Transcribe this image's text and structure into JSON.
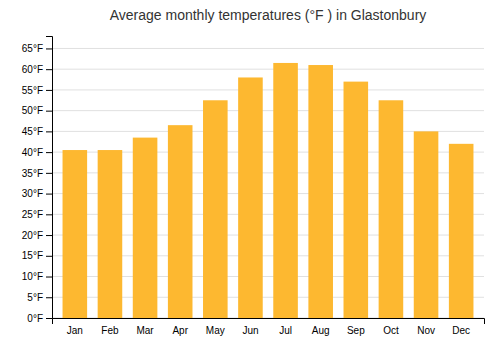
{
  "chart_data": {
    "type": "bar",
    "title": "Average monthly temperatures (°F ) in Glastonbury",
    "categories": [
      "Jan",
      "Feb",
      "Mar",
      "Apr",
      "May",
      "Jun",
      "Jul",
      "Aug",
      "Sep",
      "Oct",
      "Nov",
      "Dec"
    ],
    "values": [
      40.5,
      40.5,
      43.5,
      46.5,
      52.5,
      58,
      61.5,
      61,
      57,
      52.5,
      45,
      42
    ],
    "color": "#FDB830",
    "ylim": [
      0,
      68
    ],
    "yticks": [
      {
        "value": 0,
        "label": "0°F"
      },
      {
        "value": 5,
        "label": "5°F"
      },
      {
        "value": 10,
        "label": "10°F"
      },
      {
        "value": 15,
        "label": "15°F"
      },
      {
        "value": 20,
        "label": "20°F"
      },
      {
        "value": 25,
        "label": "25°F"
      },
      {
        "value": 30,
        "label": "30°F"
      },
      {
        "value": 35,
        "label": "35°F"
      },
      {
        "value": 40,
        "label": "40°F"
      },
      {
        "value": 45,
        "label": "45°F"
      },
      {
        "value": 50,
        "label": "50°F"
      },
      {
        "value": 55,
        "label": "55°F"
      },
      {
        "value": 60,
        "label": "60°F"
      },
      {
        "value": 65,
        "label": "65°F"
      }
    ],
    "grid": true
  }
}
